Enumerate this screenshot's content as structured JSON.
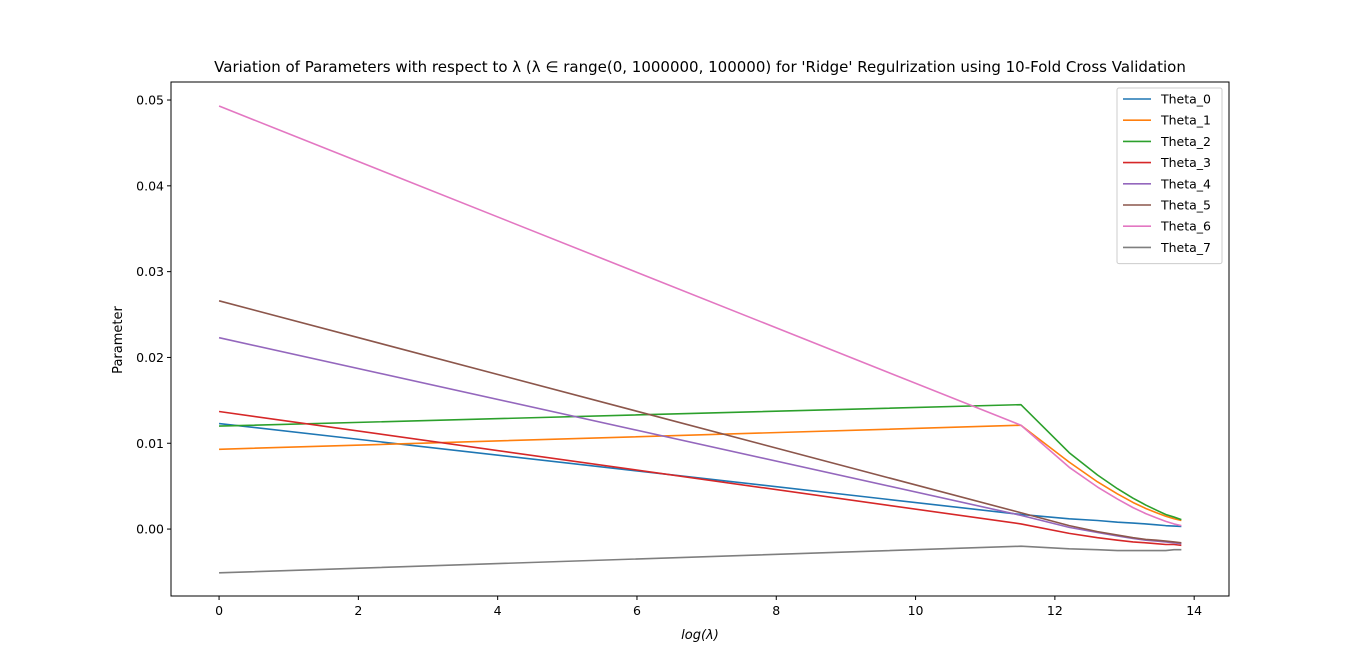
{
  "chart_data": {
    "type": "line",
    "title": "Variation of Parameters with respect to λ (λ ∈ range(0, 1000000, 100000) for 'Ridge' Regulrization using 10-Fold Cross Validation",
    "xlabel": "log(λ)",
    "ylabel": "Parameter",
    "xlim": [
      -0.69,
      14.5
    ],
    "ylim": [
      -0.0078,
      0.0521
    ],
    "xticks": [
      0,
      2,
      4,
      6,
      8,
      10,
      12,
      14
    ],
    "xtick_labels": [
      "0",
      "2",
      "4",
      "6",
      "8",
      "10",
      "12",
      "14"
    ],
    "yticks": [
      0.0,
      0.01,
      0.02,
      0.03,
      0.04,
      0.05
    ],
    "ytick_labels": [
      "0.00",
      "0.01",
      "0.02",
      "0.03",
      "0.04",
      "0.05"
    ],
    "grid": false,
    "legend_position": "top-right",
    "x": [
      0,
      11.513,
      12.206,
      12.612,
      12.899,
      13.122,
      13.305,
      13.459,
      13.592,
      13.71,
      13.816
    ],
    "series": [
      {
        "name": "Theta_0",
        "color": "#1f77b4",
        "values": [
          0.0123,
          0.0017,
          0.0012,
          0.001,
          0.0008,
          0.0007,
          0.0006,
          0.0005,
          0.0004,
          0.00035,
          0.0003
        ]
      },
      {
        "name": "Theta_1",
        "color": "#ff7f0e",
        "values": [
          0.0093,
          0.0121,
          0.0078,
          0.0055,
          0.0041,
          0.0031,
          0.0024,
          0.0019,
          0.0015,
          0.0012,
          0.001
        ]
      },
      {
        "name": "Theta_2",
        "color": "#2ca02c",
        "values": [
          0.012,
          0.0145,
          0.0089,
          0.0063,
          0.0047,
          0.0036,
          0.0028,
          0.0022,
          0.0017,
          0.0014,
          0.0011
        ]
      },
      {
        "name": "Theta_3",
        "color": "#d62728",
        "values": [
          0.0137,
          0.0006,
          -0.0005,
          -0.001,
          -0.0013,
          -0.0015,
          -0.0016,
          -0.0017,
          -0.0018,
          -0.0018,
          -0.0019
        ]
      },
      {
        "name": "Theta_4",
        "color": "#9467bd",
        "values": [
          0.0223,
          0.0016,
          0.0002,
          -0.0004,
          -0.0008,
          -0.0011,
          -0.0013,
          -0.0014,
          -0.0015,
          -0.0016,
          -0.0017
        ]
      },
      {
        "name": "Theta_5",
        "color": "#8c564b",
        "values": [
          0.0266,
          0.0019,
          0.0004,
          -0.0003,
          -0.0007,
          -0.001,
          -0.0012,
          -0.0013,
          -0.0014,
          -0.0015,
          -0.0016
        ]
      },
      {
        "name": "Theta_6",
        "color": "#e377c2",
        "values": [
          0.0493,
          0.0121,
          0.0072,
          0.0049,
          0.0035,
          0.0025,
          0.0018,
          0.0013,
          0.0009,
          0.0006,
          0.0004
        ]
      },
      {
        "name": "Theta_7",
        "color": "#7f7f7f",
        "values": [
          -0.0051,
          -0.002,
          -0.0023,
          -0.0024,
          -0.0025,
          -0.0025,
          -0.0025,
          -0.0025,
          -0.0025,
          -0.0024,
          -0.0024
        ]
      }
    ]
  }
}
